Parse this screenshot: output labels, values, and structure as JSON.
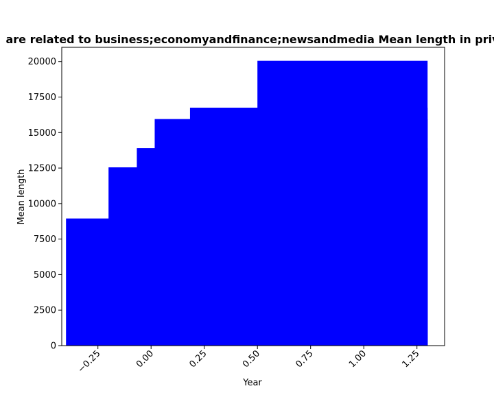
{
  "chart_data": {
    "type": "bar",
    "title": "are related to business;economyandfinance;newsandmedia Mean length in priv",
    "xlabel": "Year",
    "ylabel": "Mean length",
    "bar_color": "#0000ff",
    "grid": false,
    "legend": "none",
    "xlim": [
      -0.42,
      1.38
    ],
    "ylim": [
      0,
      21000
    ],
    "xticks": [
      -0.25,
      0.0,
      0.25,
      0.5,
      0.75,
      1.0,
      1.25
    ],
    "xtick_labels": [
      "−0.25",
      "0.00",
      "0.25",
      "0.50",
      "0.75",
      "1.00",
      "1.25"
    ],
    "yticks": [
      0,
      2500,
      5000,
      7500,
      10000,
      12500,
      15000,
      17500,
      20000
    ],
    "ytick_labels": [
      "0",
      "2500",
      "5000",
      "7500",
      "10000",
      "12500",
      "15000",
      "17500",
      "20000"
    ],
    "bars": [
      {
        "x_start": -0.4,
        "x_end": 1.3,
        "value": 8950
      },
      {
        "x_start": -0.2,
        "x_end": 1.3,
        "value": 12550
      },
      {
        "x_start": -0.067,
        "x_end": 1.3,
        "value": 13900
      },
      {
        "x_start": 0.017,
        "x_end": 1.3,
        "value": 15950
      },
      {
        "x_start": 0.183,
        "x_end": 1.3,
        "value": 16750
      },
      {
        "x_start": 0.5,
        "x_end": 1.3,
        "value": 20050
      }
    ]
  }
}
